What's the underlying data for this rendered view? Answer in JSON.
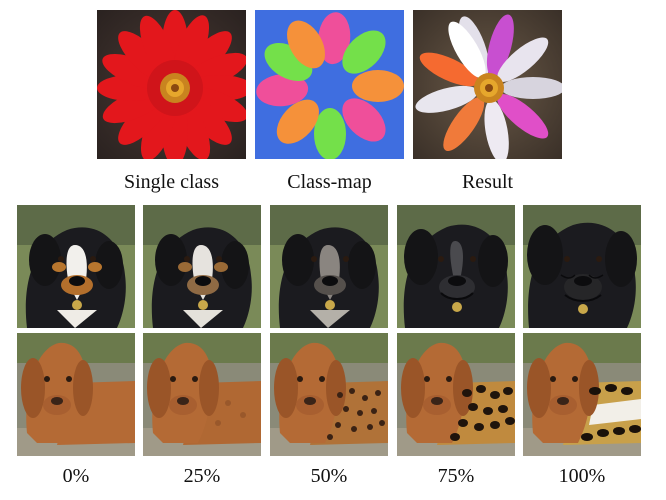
{
  "top_row": {
    "captions": [
      "Single class",
      "Class-map",
      "Result"
    ]
  },
  "bottom_row": {
    "captions": [
      "0%",
      "25%",
      "50%",
      "75%",
      "100%"
    ]
  },
  "colors": {
    "background": "#ffffff",
    "classmap_background": "#3f6ee0",
    "classmap_orange": "#f5913a",
    "classmap_pink": "#ef4f9a",
    "classmap_green": "#74e04a",
    "single_class_flower": "#e3171c",
    "black_dog": "#1b1b1f",
    "brown_dog": "#b46a35",
    "leopard_spot": "#2b1a10"
  }
}
